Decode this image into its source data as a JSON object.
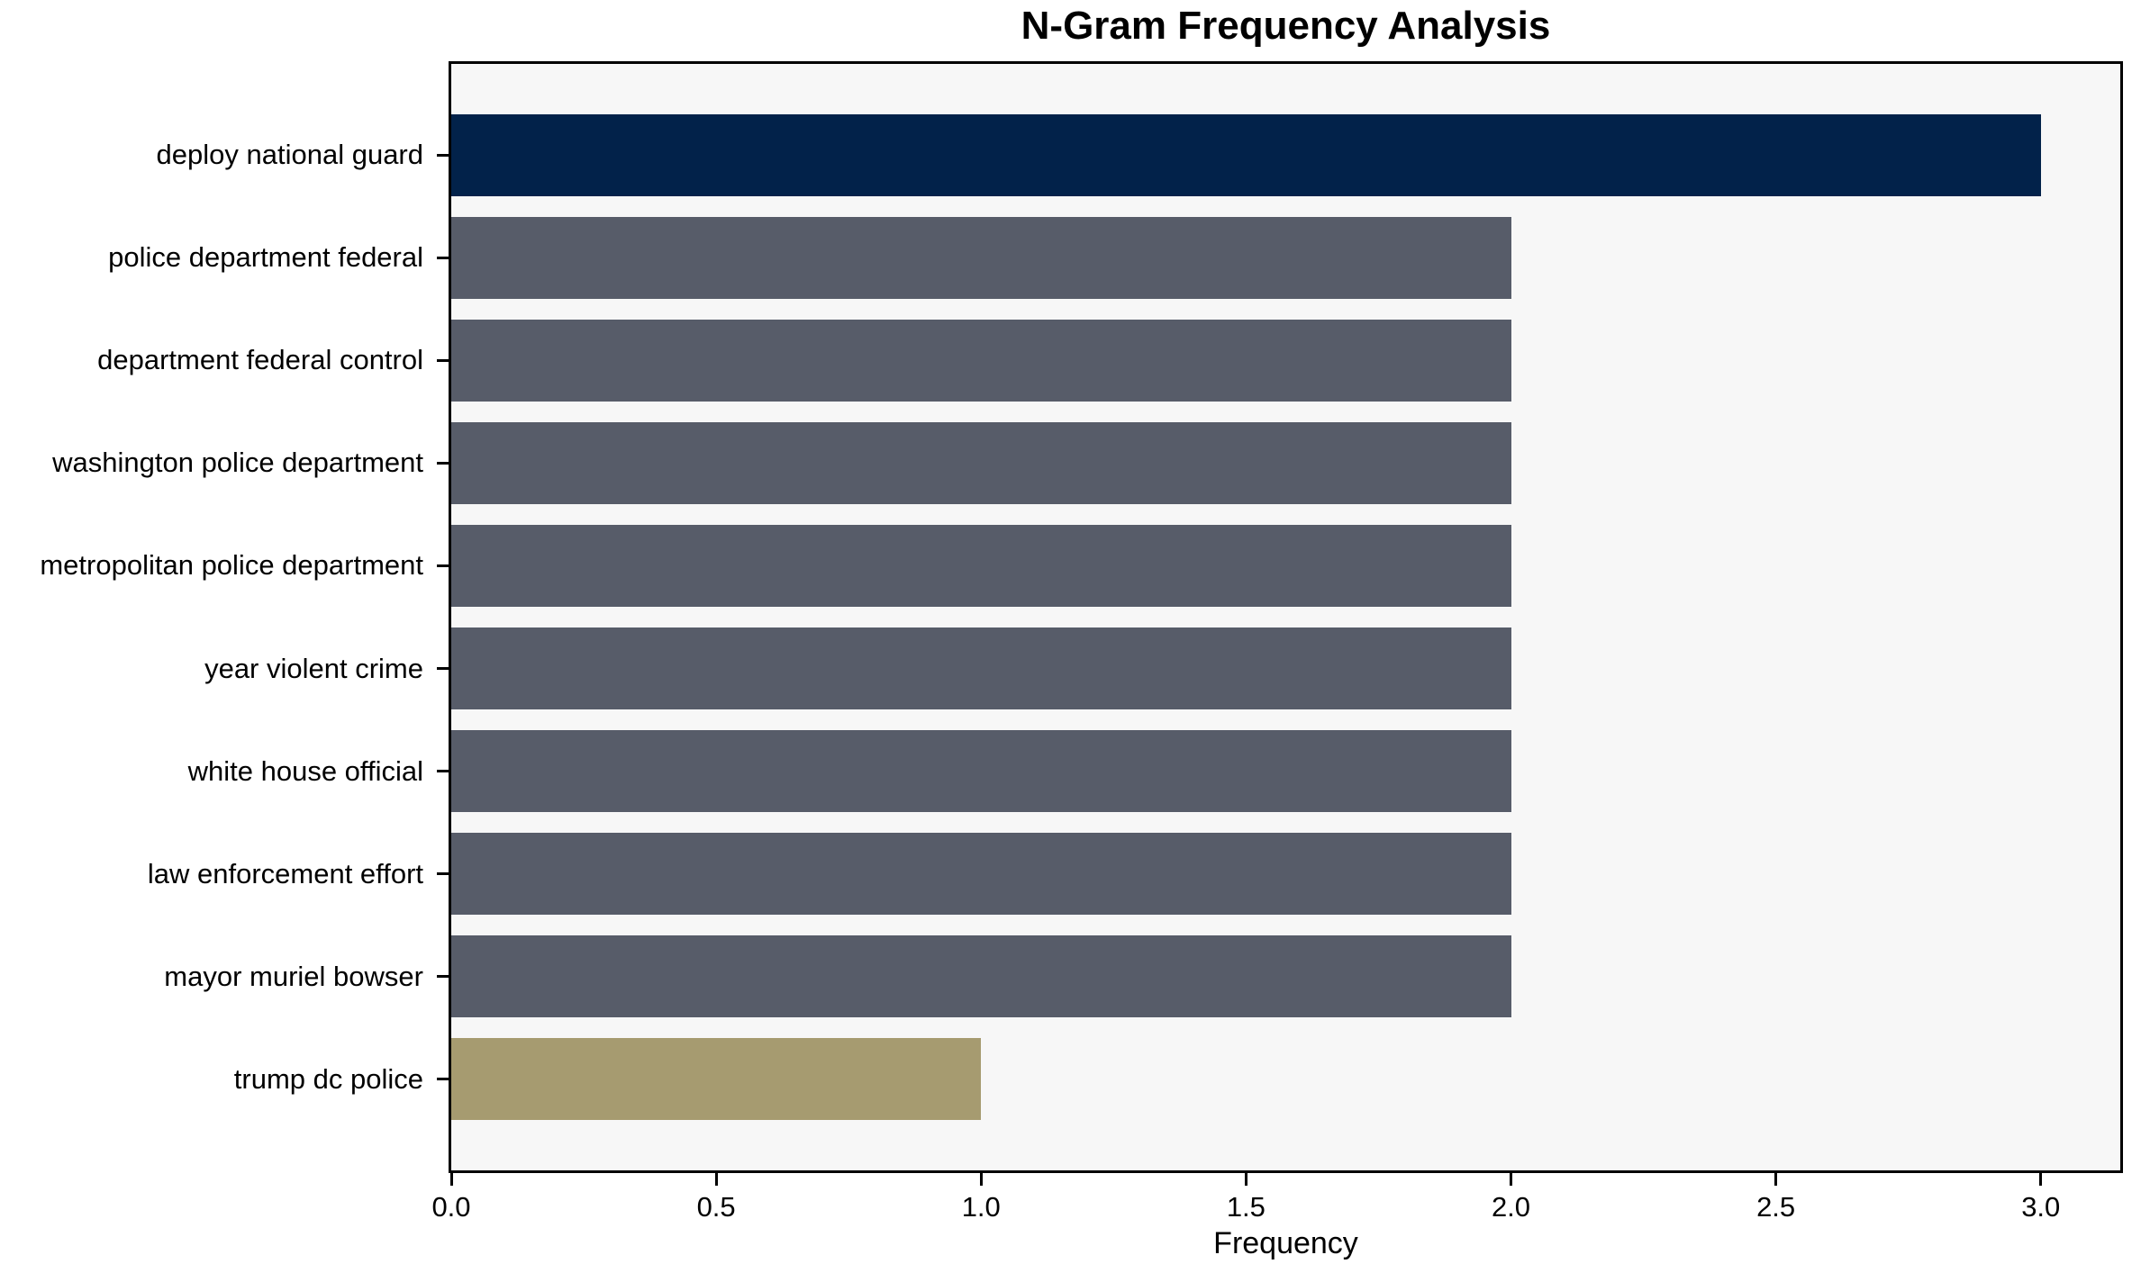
{
  "chart_data": {
    "type": "bar",
    "orientation": "horizontal",
    "title": "N-Gram Frequency Analysis",
    "xlabel": "Frequency",
    "ylabel": "",
    "categories": [
      "deploy national guard",
      "police department federal",
      "department federal control",
      "washington police department",
      "metropolitan police department",
      "year violent crime",
      "white house official",
      "law enforcement effort",
      "mayor muriel bowser",
      "trump dc police"
    ],
    "values": [
      3,
      2,
      2,
      2,
      2,
      2,
      2,
      2,
      2,
      1
    ],
    "bar_colors": [
      "#02224a",
      "#575c69",
      "#575c69",
      "#575c69",
      "#575c69",
      "#575c69",
      "#575c69",
      "#575c69",
      "#575c69",
      "#a69b70"
    ],
    "x_tick_labels": [
      "0.0",
      "0.5",
      "1.0",
      "1.5",
      "2.0",
      "2.5",
      "3.0"
    ],
    "x_tick_values": [
      0,
      0.5,
      1.0,
      1.5,
      2.0,
      2.5,
      3.0
    ],
    "xlim": [
      0,
      3.15
    ],
    "grid": false,
    "legend": "none",
    "colors": {
      "plot_background": "#f7f7f7",
      "figure_background": "#ffffff",
      "spine": "#000000",
      "text": "#000000",
      "max_bar": "#02224a",
      "mid_bar": "#575c69",
      "min_bar": "#a69b70"
    }
  }
}
